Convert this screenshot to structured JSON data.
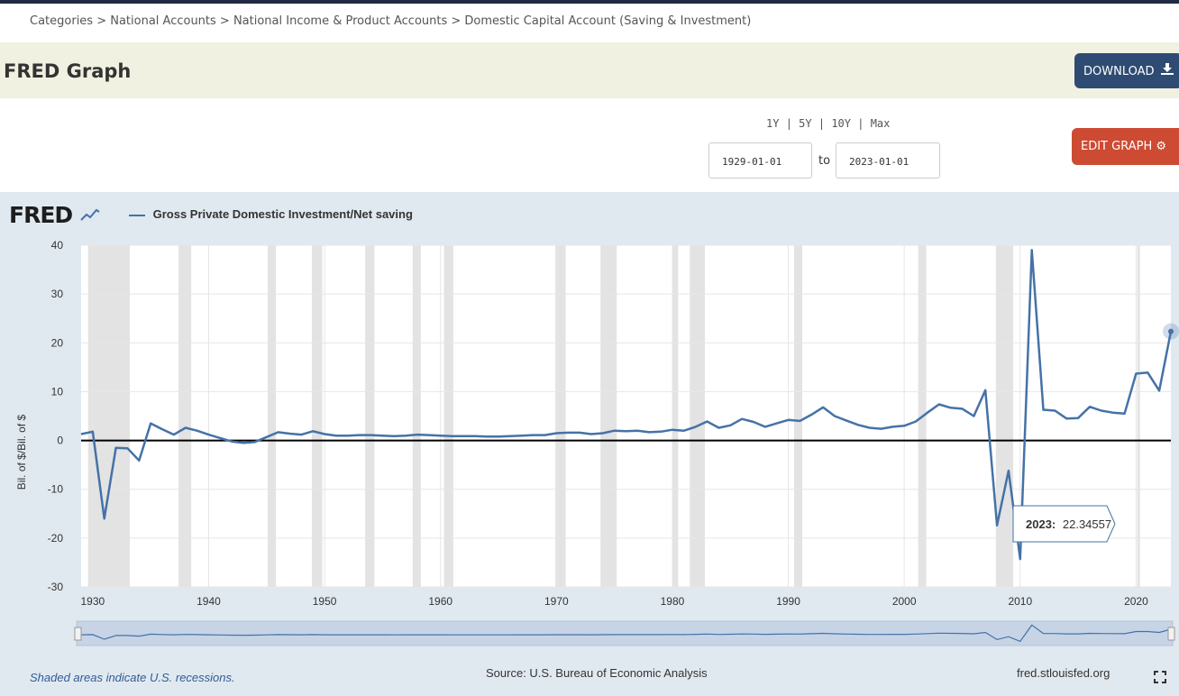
{
  "breadcrumb": "Categories > National Accounts > National Income & Product Accounts > Domestic Capital Account (Saving & Investment)",
  "page_title": "FRED Graph",
  "buttons": {
    "download": "DOWNLOAD",
    "edit": "EDIT GRAPH"
  },
  "range_links": {
    "y1": "1Y",
    "y5": "5Y",
    "y10": "10Y",
    "max": "Max",
    "sep": "|"
  },
  "date_range": {
    "from": "1929-01-01",
    "to_label": "to",
    "to": "2023-01-01"
  },
  "logo": "FRED",
  "footer": {
    "recessions": "Shaded areas indicate U.S. recessions.",
    "source": "Source: U.S. Bureau of Economic Analysis",
    "site": "fred.stlouisfed.org"
  },
  "tooltip": {
    "year": "2023:",
    "value": "22.34557"
  },
  "colors": {
    "series": "#4572a7",
    "download": "#2e4b73",
    "edit": "#cd4a33",
    "recession": "#e3e3e3"
  },
  "icons": {
    "download": "download-icon",
    "edit": "gear-icon",
    "fullscreen": "fullscreen-icon"
  },
  "chart_data": {
    "type": "line",
    "series": [
      {
        "name": "Gross Private Domestic Investment/Net saving",
        "x": [
          1929,
          1930,
          1931,
          1932,
          1933,
          1934,
          1935,
          1936,
          1937,
          1938,
          1939,
          1940,
          1941,
          1942,
          1943,
          1944,
          1945,
          1946,
          1947,
          1948,
          1949,
          1950,
          1951,
          1952,
          1953,
          1954,
          1955,
          1956,
          1957,
          1958,
          1959,
          1960,
          1961,
          1962,
          1963,
          1964,
          1965,
          1966,
          1967,
          1968,
          1969,
          1970,
          1971,
          1972,
          1973,
          1974,
          1975,
          1976,
          1977,
          1978,
          1979,
          1980,
          1981,
          1982,
          1983,
          1984,
          1985,
          1986,
          1987,
          1988,
          1989,
          1990,
          1991,
          1992,
          1993,
          1994,
          1995,
          1996,
          1997,
          1998,
          1999,
          2000,
          2001,
          2002,
          2003,
          2004,
          2005,
          2006,
          2007,
          2008,
          2009,
          2010,
          2011,
          2012,
          2013,
          2014,
          2015,
          2016,
          2017,
          2018,
          2019,
          2020,
          2021,
          2022,
          2023
        ],
        "values": [
          1.3,
          1.8,
          -16.0,
          -1.5,
          -1.6,
          -4.1,
          3.5,
          2.3,
          1.2,
          2.6,
          2.0,
          1.2,
          0.5,
          -0.2,
          -0.5,
          -0.3,
          0.7,
          1.7,
          1.4,
          1.2,
          1.9,
          1.3,
          1.0,
          1.0,
          1.1,
          1.1,
          1.0,
          0.9,
          1.0,
          1.2,
          1.1,
          1.0,
          0.9,
          0.9,
          0.9,
          0.8,
          0.8,
          0.9,
          1.0,
          1.1,
          1.1,
          1.5,
          1.6,
          1.6,
          1.3,
          1.5,
          2.0,
          1.9,
          2.0,
          1.7,
          1.8,
          2.2,
          2.0,
          2.8,
          3.9,
          2.6,
          3.1,
          4.4,
          3.8,
          2.8,
          3.5,
          4.2,
          4.0,
          5.3,
          6.8,
          5.0,
          4.1,
          3.2,
          2.6,
          2.4,
          2.8,
          3.0,
          3.9,
          5.7,
          7.4,
          6.7,
          6.5,
          5.0,
          10.3,
          -17.4,
          -6.2,
          -24.3,
          39.0,
          6.3,
          6.1,
          4.5,
          4.6,
          6.9,
          6.1,
          5.7,
          5.5,
          13.7,
          13.9,
          10.2,
          22.34557
        ]
      }
    ],
    "ylabel": "Bil. of $/Bil. of $",
    "ylim": [
      -30,
      40
    ],
    "xlim": [
      1929,
      2023
    ],
    "yticks": [
      40,
      30,
      20,
      10,
      0,
      -10,
      -20,
      -30
    ],
    "xticks": [
      1930,
      1940,
      1950,
      1960,
      1970,
      1980,
      1990,
      2000,
      2010,
      2020
    ],
    "recessions": [
      [
        1929.6,
        1933.2
      ],
      [
        1937.4,
        1938.5
      ],
      [
        1945.1,
        1945.8
      ],
      [
        1948.9,
        1949.8
      ],
      [
        1953.5,
        1954.3
      ],
      [
        1957.6,
        1958.3
      ],
      [
        1960.3,
        1961.1
      ],
      [
        1969.9,
        1970.8
      ],
      [
        1973.8,
        1975.2
      ],
      [
        1980.0,
        1980.5
      ],
      [
        1981.5,
        1982.8
      ],
      [
        1990.5,
        1991.2
      ],
      [
        2001.2,
        2001.9
      ],
      [
        2007.9,
        2009.4
      ],
      [
        2020.1,
        2020.3
      ]
    ],
    "legend": "top-left",
    "grid": true
  }
}
